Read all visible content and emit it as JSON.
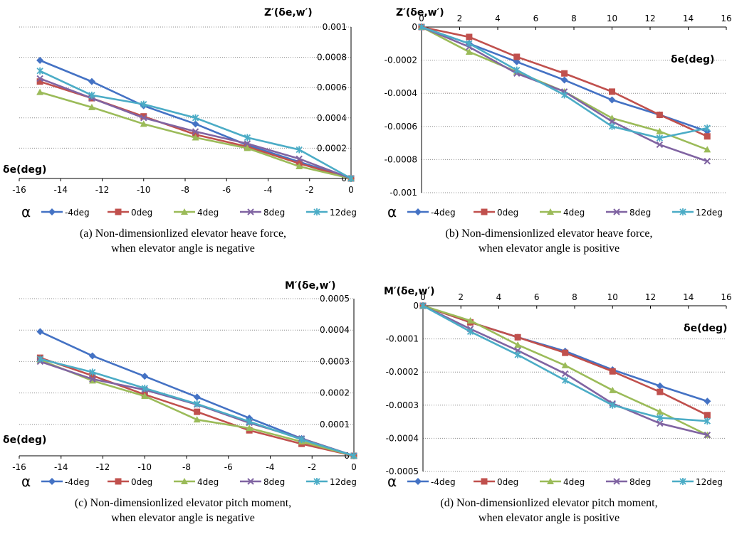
{
  "legend": {
    "symbol": "α",
    "series": [
      {
        "name": "-4deg",
        "color": "#4472C4",
        "marker": "diamond"
      },
      {
        "name": "0deg",
        "color": "#C0504D",
        "marker": "square"
      },
      {
        "name": "4deg",
        "color": "#9BBB59",
        "marker": "triangle"
      },
      {
        "name": "8deg",
        "color": "#8064A2",
        "marker": "x"
      },
      {
        "name": "12deg",
        "color": "#4BACC6",
        "marker": "star"
      }
    ]
  },
  "chart_data": [
    {
      "id": "a",
      "type": "line",
      "caption": [
        "(a)  Non-dimensionlized  elevator  heave  force,",
        "when  elevator  angle  is  negative"
      ],
      "ylabel": "Z′(δe,w′)",
      "xlabel": "δe(deg)",
      "xlim": [
        -16,
        0
      ],
      "ylim": [
        0,
        0.001
      ],
      "xticks": [
        -16,
        -14,
        -12,
        -10,
        -8,
        -6,
        -4,
        -2,
        0
      ],
      "yticks": [
        0,
        0.0002,
        0.0004,
        0.0006,
        0.0008,
        0.001
      ],
      "ytick_labels": [
        "0",
        "0.0002",
        "0.0004",
        "0.0006",
        "0.0008",
        "0.001"
      ],
      "x": [
        -15,
        -12.5,
        -10,
        -7.5,
        -5,
        -2.5,
        0
      ],
      "series": [
        {
          "name": "-4deg",
          "values": [
            0.00078,
            0.00064,
            0.00048,
            0.00036,
            0.00022,
            0.00011,
            0
          ]
        },
        {
          "name": "0deg",
          "values": [
            0.00064,
            0.00053,
            0.00041,
            0.00029,
            0.00021,
            0.0001,
            0
          ]
        },
        {
          "name": "4deg",
          "values": [
            0.00057,
            0.00047,
            0.00036,
            0.00027,
            0.0002,
            8e-05,
            0
          ]
        },
        {
          "name": "8deg",
          "values": [
            0.00066,
            0.00053,
            0.0004,
            0.00031,
            0.00023,
            0.00013,
            0
          ]
        },
        {
          "name": "12deg",
          "values": [
            0.00071,
            0.00055,
            0.00049,
            0.0004,
            0.00027,
            0.00019,
            0
          ]
        }
      ]
    },
    {
      "id": "b",
      "type": "line",
      "caption": [
        "(b)  Non-dimensionlized  elevator  heave  force,",
        "when  elevator  angle  is  positive"
      ],
      "ylabel": "Z′(δe,w′)",
      "xlabel": "δe(deg)",
      "xlim": [
        0,
        16
      ],
      "ylim": [
        -0.001,
        0
      ],
      "xticks": [
        0,
        2,
        4,
        6,
        8,
        10,
        12,
        14,
        16
      ],
      "yticks": [
        0,
        -0.0002,
        -0.0004,
        -0.0006,
        -0.0008,
        -0.001
      ],
      "ytick_labels": [
        "0",
        "-0.0002",
        "-0.0004",
        "-0.0006",
        "-0.0008",
        "-0.001"
      ],
      "x": [
        0,
        2.5,
        5,
        7.5,
        10,
        12.5,
        15
      ],
      "series": [
        {
          "name": "-4deg",
          "values": [
            0,
            -0.0001,
            -0.00021,
            -0.00032,
            -0.00044,
            -0.00053,
            -0.00063
          ]
        },
        {
          "name": "0deg",
          "values": [
            0,
            -6e-05,
            -0.00018,
            -0.00028,
            -0.00039,
            -0.00053,
            -0.00066
          ]
        },
        {
          "name": "4deg",
          "values": [
            0,
            -0.00015,
            -0.00027,
            -0.00039,
            -0.00055,
            -0.00063,
            -0.00074
          ]
        },
        {
          "name": "8deg",
          "values": [
            0,
            -0.00012,
            -0.00028,
            -0.00039,
            -0.00057,
            -0.00071,
            -0.00081
          ]
        },
        {
          "name": "12deg",
          "values": [
            0,
            -0.0001,
            -0.00026,
            -0.00041,
            -0.0006,
            -0.00067,
            -0.00061
          ]
        }
      ]
    },
    {
      "id": "c",
      "type": "line",
      "caption": [
        "(c)  Non-dimensionlized  elevator  pitch  moment,",
        "when  elevator  angle  is  negative"
      ],
      "ylabel": "M′(δe,w′)",
      "xlabel": "δe(deg)",
      "xlim": [
        -16,
        0
      ],
      "ylim": [
        0,
        0.0005
      ],
      "xticks": [
        -16,
        -14,
        -12,
        -10,
        -8,
        -6,
        -4,
        -2,
        0
      ],
      "yticks": [
        0,
        0.0001,
        0.0002,
        0.0003,
        0.0004,
        0.0005
      ],
      "ytick_labels": [
        "0",
        "0.0001",
        "0.0002",
        "0.0003",
        "0.0004",
        "0.0005"
      ],
      "x": [
        -15,
        -12.5,
        -10,
        -7.5,
        -5,
        -2.5,
        0
      ],
      "series": [
        {
          "name": "-4deg",
          "values": [
            0.000395,
            0.000318,
            0.000253,
            0.000187,
            0.00012,
            5.5e-05,
            0
          ]
        },
        {
          "name": "0deg",
          "values": [
            0.000312,
            0.000255,
            0.000195,
            0.00014,
            8.1e-05,
            3.8e-05,
            0
          ]
        },
        {
          "name": "4deg",
          "values": [
            0.000305,
            0.000239,
            0.00019,
            0.000115,
            8.8e-05,
            4.5e-05,
            0
          ]
        },
        {
          "name": "8deg",
          "values": [
            0.0003,
            0.000244,
            0.00021,
            0.000163,
            0.000105,
            5.5e-05,
            0
          ]
        },
        {
          "name": "12deg",
          "values": [
            0.000308,
            0.000266,
            0.000215,
            0.000165,
            0.000109,
            5.2e-05,
            0
          ]
        }
      ]
    },
    {
      "id": "d",
      "type": "line",
      "caption": [
        "(d)  Non-dimensionlized  elevator  pitch  moment,",
        "when  elevator  angle  is  positive"
      ],
      "ylabel": "M′(δe,w′)",
      "xlabel": "δe(deg)",
      "xlim": [
        0,
        16
      ],
      "ylim": [
        -0.0005,
        0
      ],
      "xticks": [
        0,
        2,
        4,
        6,
        8,
        10,
        12,
        14,
        16
      ],
      "yticks": [
        0,
        -0.0001,
        -0.0002,
        -0.0003,
        -0.0004,
        -0.0005
      ],
      "ytick_labels": [
        "0",
        "-0.0001",
        "-0.0002",
        "-0.0003",
        "-0.0004",
        "-0.0005"
      ],
      "x": [
        0,
        2.5,
        5,
        7.5,
        10,
        12.5,
        15
      ],
      "series": [
        {
          "name": "-4deg",
          "values": [
            0,
            -5e-05,
            -9.5e-05,
            -0.000137,
            -0.000193,
            -0.000242,
            -0.000288
          ]
        },
        {
          "name": "0deg",
          "values": [
            0,
            -5e-05,
            -9.5e-05,
            -0.000142,
            -0.000198,
            -0.00026,
            -0.00033
          ]
        },
        {
          "name": "4deg",
          "values": [
            0,
            -4.5e-05,
            -0.000118,
            -0.00018,
            -0.000255,
            -0.00032,
            -0.00039
          ]
        },
        {
          "name": "8deg",
          "values": [
            0,
            -7e-05,
            -0.000135,
            -0.000205,
            -0.000295,
            -0.000355,
            -0.00039
          ]
        },
        {
          "name": "12deg",
          "values": [
            0,
            -7.8e-05,
            -0.000148,
            -0.000225,
            -0.0003,
            -0.000338,
            -0.000348
          ]
        }
      ]
    }
  ]
}
